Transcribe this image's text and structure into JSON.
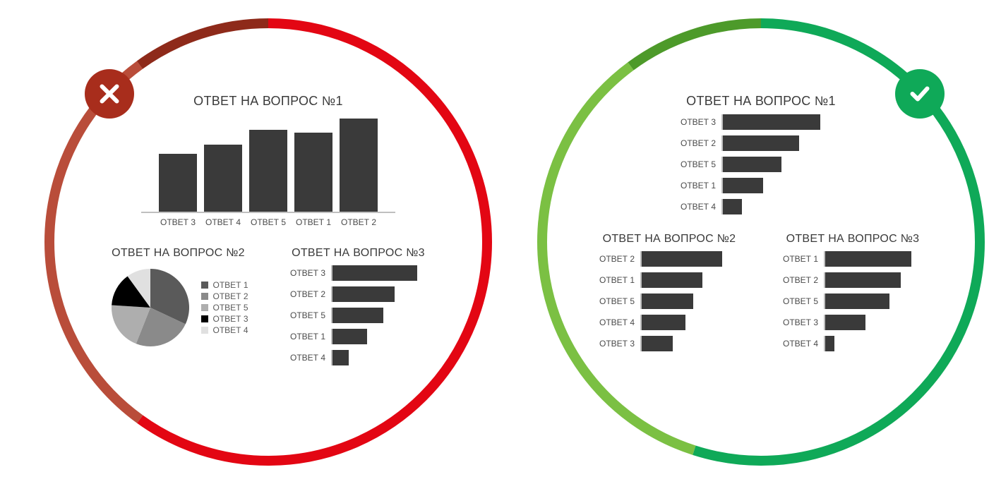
{
  "colors": {
    "bar_fill": "#3a3a3a",
    "grid": "#bfbfbf",
    "text": "#3a3a3a",
    "label": "#4a4a4a",
    "bg": "#ffffff",
    "left_ring_primary": "#e30613",
    "left_ring_secondary": "#b94d3a",
    "left_ring_dark": "#8e2a1a",
    "left_badge": "#a82d1c",
    "right_ring_primary": "#0fa958",
    "right_ring_secondary": "#7bc043",
    "right_ring_mid": "#4d9a2a",
    "right_badge": "#0fa958"
  },
  "left": {
    "badge_icon": "cross",
    "chart1": {
      "type": "bar-vertical",
      "title": "ОТВЕТ НА ВОПРОС №1",
      "max": 140,
      "bars": [
        {
          "label": "ОТВЕТ 3",
          "value": 82
        },
        {
          "label": "ОТВЕТ 4",
          "value": 95
        },
        {
          "label": "ОТВЕТ 5",
          "value": 116
        },
        {
          "label": "ОТВЕТ 1",
          "value": 112
        },
        {
          "label": "ОТВЕТ 2",
          "value": 132
        }
      ]
    },
    "chart2": {
      "type": "pie",
      "title": "ОТВЕТ НА ВОПРОС №2",
      "slices": [
        {
          "label": "ОТВЕТ 1",
          "value": 32,
          "color": "#5a5a5a"
        },
        {
          "label": "ОТВЕТ 2",
          "value": 24,
          "color": "#8a8a8a"
        },
        {
          "label": "ОТВЕТ 5",
          "value": 20,
          "color": "#aeaeae"
        },
        {
          "label": "ОТВЕТ 3",
          "value": 14,
          "color": "#000000"
        },
        {
          "label": "ОТВЕТ 4",
          "value": 10,
          "color": "#e0e0e0"
        }
      ]
    },
    "chart3": {
      "type": "bar-horizontal",
      "title": "ОТВЕТ НА ВОПРОС №3",
      "max": 100,
      "bars": [
        {
          "label": "ОТВЕТ 3",
          "value": 92
        },
        {
          "label": "ОТВЕТ 2",
          "value": 68
        },
        {
          "label": "ОТВЕТ 5",
          "value": 55
        },
        {
          "label": "ОТВЕТ 1",
          "value": 38
        },
        {
          "label": "ОТВЕТ 4",
          "value": 18
        }
      ]
    }
  },
  "right": {
    "badge_icon": "check",
    "chart1": {
      "type": "bar-horizontal",
      "title": "ОТВЕТ НА ВОПРОС №1",
      "max": 100,
      "bars": [
        {
          "label": "ОТВЕТ 3",
          "value": 92
        },
        {
          "label": "ОТВЕТ 2",
          "value": 72
        },
        {
          "label": "ОТВЕТ 5",
          "value": 55
        },
        {
          "label": "ОТВЕТ 1",
          "value": 38
        },
        {
          "label": "ОТВЕТ 4",
          "value": 18
        }
      ]
    },
    "chart2": {
      "type": "bar-horizontal",
      "title": "ОТВЕТ НА ВОПРОС №2",
      "max": 100,
      "bars": [
        {
          "label": "ОТВЕТ 2",
          "value": 88
        },
        {
          "label": "ОТВЕТ 1",
          "value": 66
        },
        {
          "label": "ОТВЕТ 5",
          "value": 56
        },
        {
          "label": "ОТВЕТ 4",
          "value": 48
        },
        {
          "label": "ОТВЕТ 3",
          "value": 34
        }
      ]
    },
    "chart3": {
      "type": "bar-horizontal",
      "title": "ОТВЕТ НА ВОПРОС №3",
      "max": 100,
      "bars": [
        {
          "label": "ОТВЕТ 1",
          "value": 94
        },
        {
          "label": "ОТВЕТ 2",
          "value": 82
        },
        {
          "label": "ОТВЕТ 5",
          "value": 70
        },
        {
          "label": "ОТВЕТ 3",
          "value": 44
        },
        {
          "label": "ОТВЕТ 4",
          "value": 10
        }
      ]
    }
  }
}
